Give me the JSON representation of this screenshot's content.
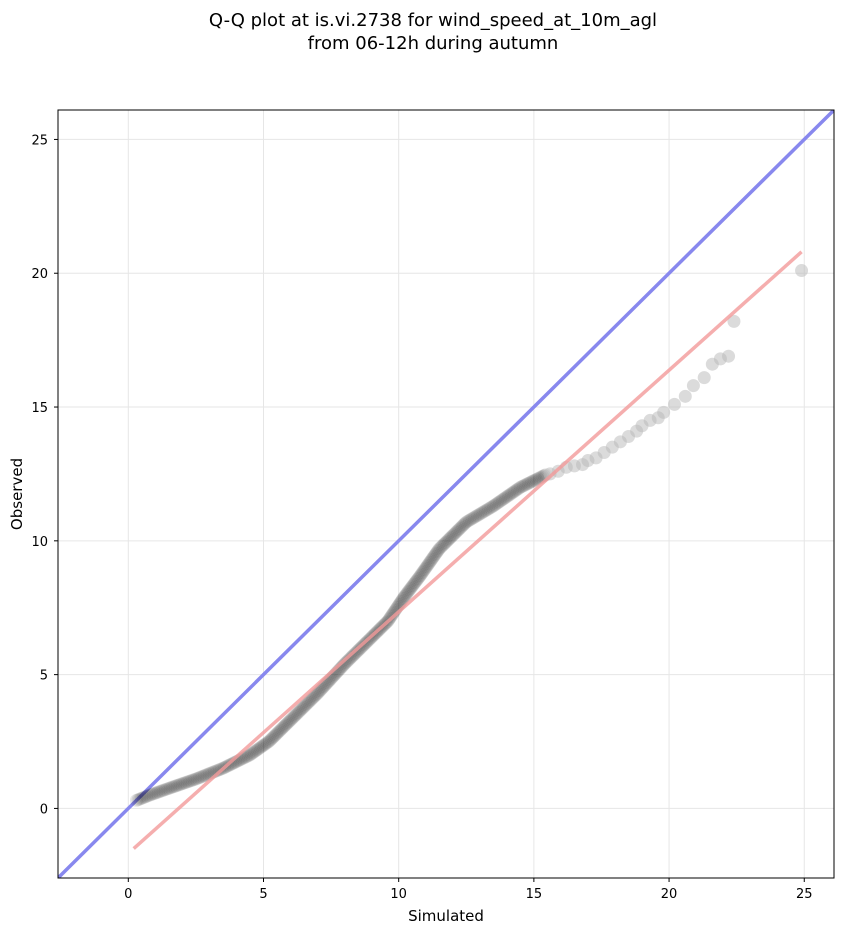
{
  "chart_data": {
    "type": "scatter",
    "title_lines": [
      "Q-Q plot at is.vi.2738 for wind_speed_at_10m_agl",
      "from 06-12h during autumn"
    ],
    "xlabel": "Simulated",
    "ylabel": "Observed",
    "xlim": [
      -2.6,
      26.1
    ],
    "ylim": [
      -2.6,
      26.1
    ],
    "xticks": [
      0,
      5,
      10,
      15,
      20,
      25
    ],
    "yticks": [
      0,
      5,
      10,
      15,
      20,
      25
    ],
    "grid": true,
    "reference_line": {
      "color": "#8888ee",
      "description": "identity y = x"
    },
    "fit_line": {
      "color": "#f29a9a",
      "x": [
        0.2,
        24.9
      ],
      "y": [
        -1.5,
        20.8
      ]
    },
    "point_color": "#000000",
    "tail_point_color": "#b8b8b8",
    "quantile_curve": {
      "x": [
        0.3,
        0.8,
        1.5,
        2.5,
        3.5,
        4.5,
        5.2,
        6.0,
        7.0,
        8.0,
        9.0,
        9.6,
        10.2,
        10.8,
        11.5,
        12.5,
        13.5,
        14.5,
        15.5
      ],
      "y": [
        0.3,
        0.5,
        0.75,
        1.1,
        1.5,
        2.0,
        2.5,
        3.3,
        4.3,
        5.4,
        6.4,
        7.0,
        7.9,
        8.7,
        9.7,
        10.7,
        11.3,
        12.0,
        12.5
      ]
    },
    "tail_points": {
      "x": [
        15.6,
        15.9,
        16.2,
        16.5,
        16.8,
        17.0,
        17.3,
        17.6,
        17.9,
        18.2,
        18.5,
        18.8,
        19.0,
        19.3,
        19.6,
        19.8,
        20.2,
        20.6,
        20.9,
        21.3,
        21.6,
        21.9,
        22.2,
        22.4,
        24.9
      ],
      "y": [
        12.5,
        12.6,
        12.75,
        12.8,
        12.85,
        13.0,
        13.1,
        13.3,
        13.5,
        13.7,
        13.9,
        14.1,
        14.3,
        14.5,
        14.6,
        14.8,
        15.1,
        15.4,
        15.8,
        16.1,
        16.6,
        16.8,
        16.9,
        18.2,
        20.1
      ]
    }
  }
}
